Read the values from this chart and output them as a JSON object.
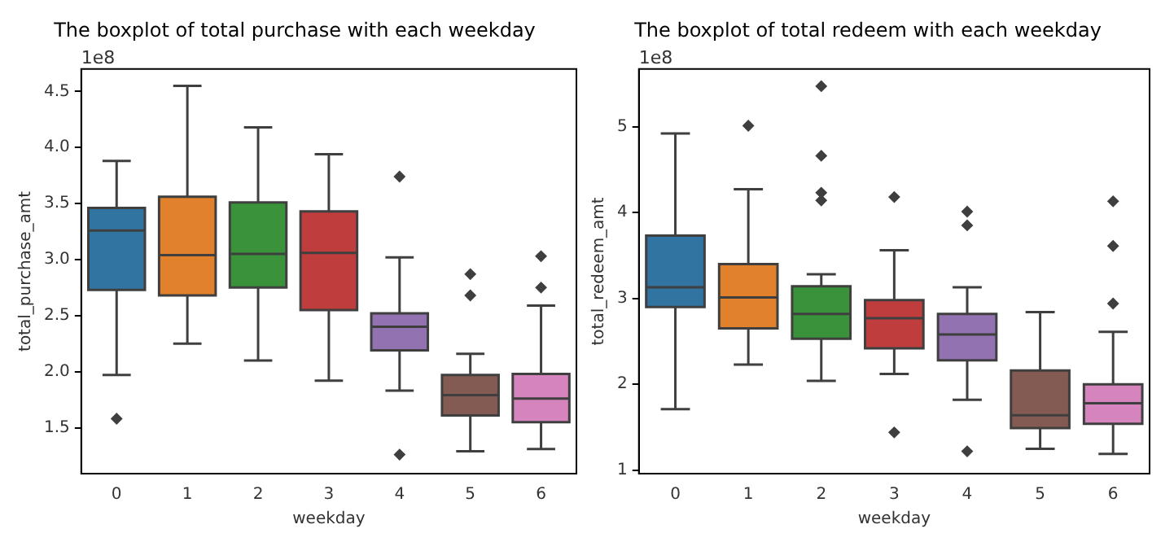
{
  "chart_data": [
    {
      "type": "box",
      "title": "The boxplot of total purchase with each weekday",
      "xlabel": "weekday",
      "ylabel": "total_purchase_amt",
      "annotations": [
        "1e8"
      ],
      "categories": [
        "0",
        "1",
        "2",
        "3",
        "4",
        "5",
        "6"
      ],
      "colors": [
        "#3274a1",
        "#e1812c",
        "#3a923a",
        "#c03d3e",
        "#9372b2",
        "#845b53",
        "#d684bd"
      ],
      "ylim": [
        1.09,
        4.7
      ],
      "yticks": [
        1.5,
        {
          "value": 2,
          "label": "2.0"
        },
        2.5,
        {
          "value": 3,
          "label": "3.0"
        },
        3.5,
        {
          "value": 4,
          "label": "4.0"
        },
        4.5
      ],
      "boxes": [
        {
          "low": 1.97,
          "q1": 2.73,
          "median": 3.26,
          "q3": 3.46,
          "high": 3.88,
          "outliers": [
            1.58
          ]
        },
        {
          "low": 2.25,
          "q1": 2.68,
          "median": 3.04,
          "q3": 3.56,
          "high": 4.55
        },
        {
          "low": 2.1,
          "q1": 2.75,
          "median": 3.05,
          "q3": 3.51,
          "high": 4.18
        },
        {
          "low": 1.92,
          "q1": 2.55,
          "median": 3.06,
          "q3": 3.43,
          "high": 3.94
        },
        {
          "low": 1.83,
          "q1": 2.19,
          "median": 2.4,
          "q3": 2.52,
          "high": 3.02,
          "outliers": [
            3.74,
            1.26
          ]
        },
        {
          "low": 1.29,
          "q1": 1.61,
          "median": 1.79,
          "q3": 1.97,
          "high": 2.16,
          "outliers": [
            2.87,
            2.68
          ]
        },
        {
          "low": 1.31,
          "q1": 1.55,
          "median": 1.76,
          "q3": 1.98,
          "high": 2.59,
          "outliers": [
            3.03,
            2.75
          ]
        }
      ]
    },
    {
      "type": "box",
      "title": "The boxplot of total redeem with each weekday",
      "xlabel": "weekday",
      "ylabel": "total_redeem_amt",
      "annotations": [
        "1e8"
      ],
      "categories": [
        "0",
        "1",
        "2",
        "3",
        "4",
        "5",
        "6"
      ],
      "colors": [
        "#3274a1",
        "#e1812c",
        "#3a923a",
        "#c03d3e",
        "#9372b2",
        "#845b53",
        "#d684bd"
      ],
      "ylim": [
        0.96,
        5.67
      ],
      "yticks": [
        1,
        2,
        3,
        4,
        5
      ],
      "boxes": [
        {
          "low": 1.71,
          "q1": 2.9,
          "median": 3.13,
          "q3": 3.73,
          "high": 4.92
        },
        {
          "low": 2.23,
          "q1": 2.65,
          "median": 3.01,
          "q3": 3.4,
          "high": 4.27,
          "outliers": [
            5.01
          ]
        },
        {
          "low": 2.04,
          "q1": 2.53,
          "median": 2.82,
          "q3": 3.14,
          "high": 3.28,
          "outliers": [
            5.47,
            4.66,
            4.23,
            4.14
          ]
        },
        {
          "low": 2.12,
          "q1": 2.42,
          "median": 2.77,
          "q3": 2.98,
          "high": 3.56,
          "outliers": [
            4.18,
            1.44
          ]
        },
        {
          "low": 1.82,
          "q1": 2.28,
          "median": 2.58,
          "q3": 2.82,
          "high": 3.13,
          "outliers": [
            4.01,
            3.85,
            1.22
          ]
        },
        {
          "low": 1.25,
          "q1": 1.49,
          "median": 1.64,
          "q3": 2.16,
          "high": 2.84
        },
        {
          "low": 1.19,
          "q1": 1.54,
          "median": 1.78,
          "q3": 2.0,
          "high": 2.61,
          "outliers": [
            4.13,
            3.61,
            2.94
          ]
        }
      ]
    }
  ]
}
